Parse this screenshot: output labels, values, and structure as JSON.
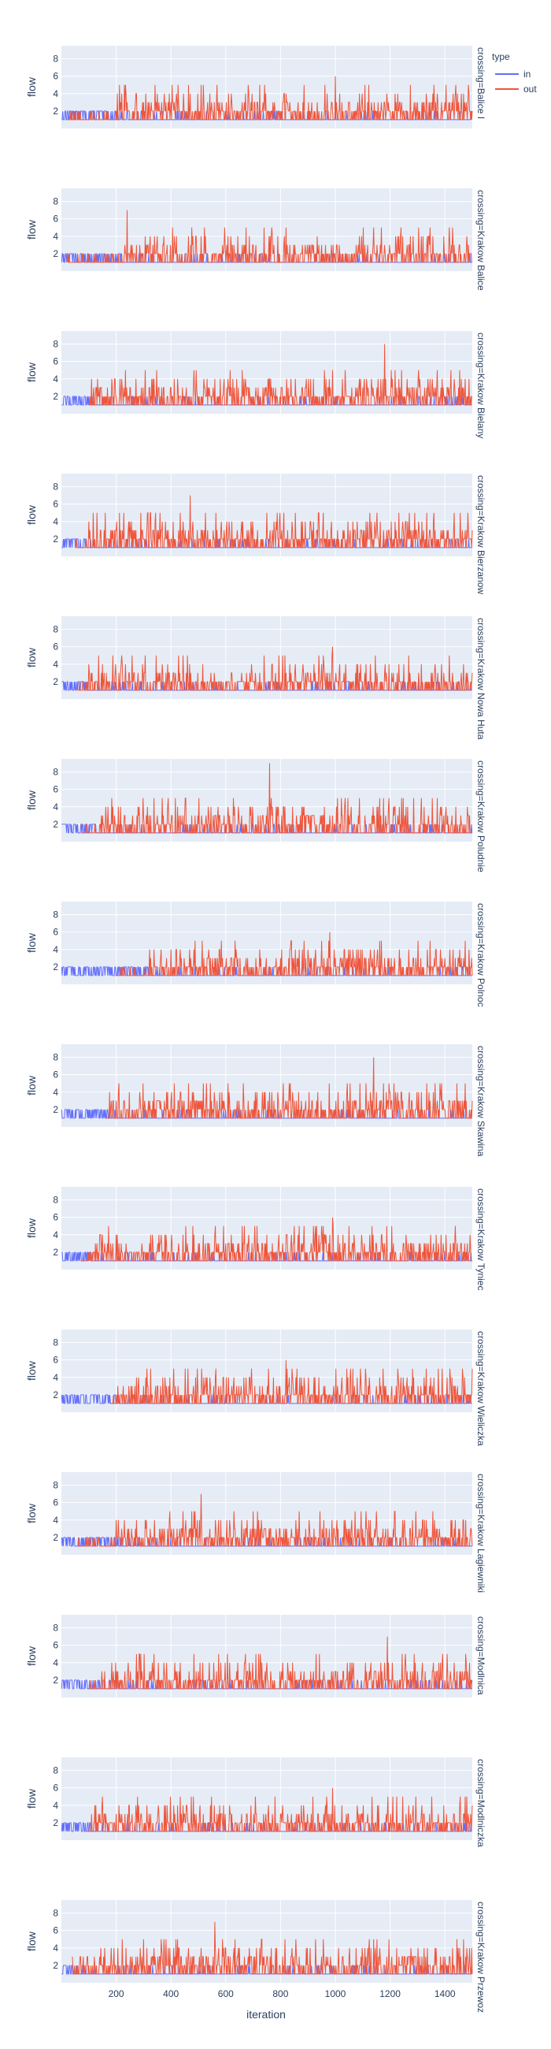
{
  "chart_data": {
    "type": "line",
    "xlabel": "iteration",
    "ylabel": "flow",
    "xlim": [
      0,
      1500
    ],
    "ylim": [
      0,
      9.5
    ],
    "x_ticks": [
      200,
      400,
      600,
      800,
      1000,
      1200,
      1400
    ],
    "y_ticks": [
      2,
      4,
      6,
      8
    ],
    "grid": true,
    "legend": {
      "title": "type",
      "placement": "top-right",
      "entries": [
        {
          "name": "in",
          "color": "#636efa"
        },
        {
          "name": "out",
          "color": "#EF553B"
        }
      ]
    },
    "facets": [
      {
        "label": "crossing=Balice I",
        "in_until": 200,
        "out_from": 20,
        "peak_iteration": 1000,
        "peak_value": 6
      },
      {
        "label": "crossing=Krakow Balice",
        "in_until": 220,
        "out_from": 20,
        "peak_iteration": 240,
        "peak_value": 7
      },
      {
        "label": "crossing=Krakow Bielany",
        "in_until": 110,
        "out_from": 100,
        "peak_iteration": 1180,
        "peak_value": 8
      },
      {
        "label": "crossing=Krakow Bierzanow",
        "in_until": 90,
        "out_from": 50,
        "peak_iteration": 470,
        "peak_value": 7
      },
      {
        "label": "crossing=Krakow Nowa Huta",
        "in_until": 100,
        "out_from": 60,
        "peak_iteration": 990,
        "peak_value": 6
      },
      {
        "label": "crossing=Krakow Poludnie",
        "in_until": 130,
        "out_from": 70,
        "peak_iteration": 760,
        "peak_value": 9
      },
      {
        "label": "crossing=Krakow Polnoc",
        "in_until": 320,
        "out_from": 200,
        "peak_iteration": 980,
        "peak_value": 6
      },
      {
        "label": "crossing=Krakow Skawina",
        "in_until": 170,
        "out_from": 160,
        "peak_iteration": 1140,
        "peak_value": 8
      },
      {
        "label": "crossing=Krakow Tyniec",
        "in_until": 110,
        "out_from": 70,
        "peak_iteration": 990,
        "peak_value": 6
      },
      {
        "label": "crossing=Krakow Wieliczka",
        "in_until": 200,
        "out_from": 180,
        "peak_iteration": 820,
        "peak_value": 6
      },
      {
        "label": "crossing=Krakow Lagiewniki",
        "in_until": 200,
        "out_from": 60,
        "peak_iteration": 510,
        "peak_value": 7
      },
      {
        "label": "crossing=Modlnica",
        "in_until": 140,
        "out_from": 100,
        "peak_iteration": 1190,
        "peak_value": 7
      },
      {
        "label": "crossing=Modlniczka",
        "in_until": 110,
        "out_from": 90,
        "peak_iteration": 990,
        "peak_value": 6
      },
      {
        "label": "crossing=Krakow Przewoz",
        "in_until": 40,
        "out_from": 40,
        "peak_iteration": 560,
        "peak_value": 7
      }
    ]
  }
}
